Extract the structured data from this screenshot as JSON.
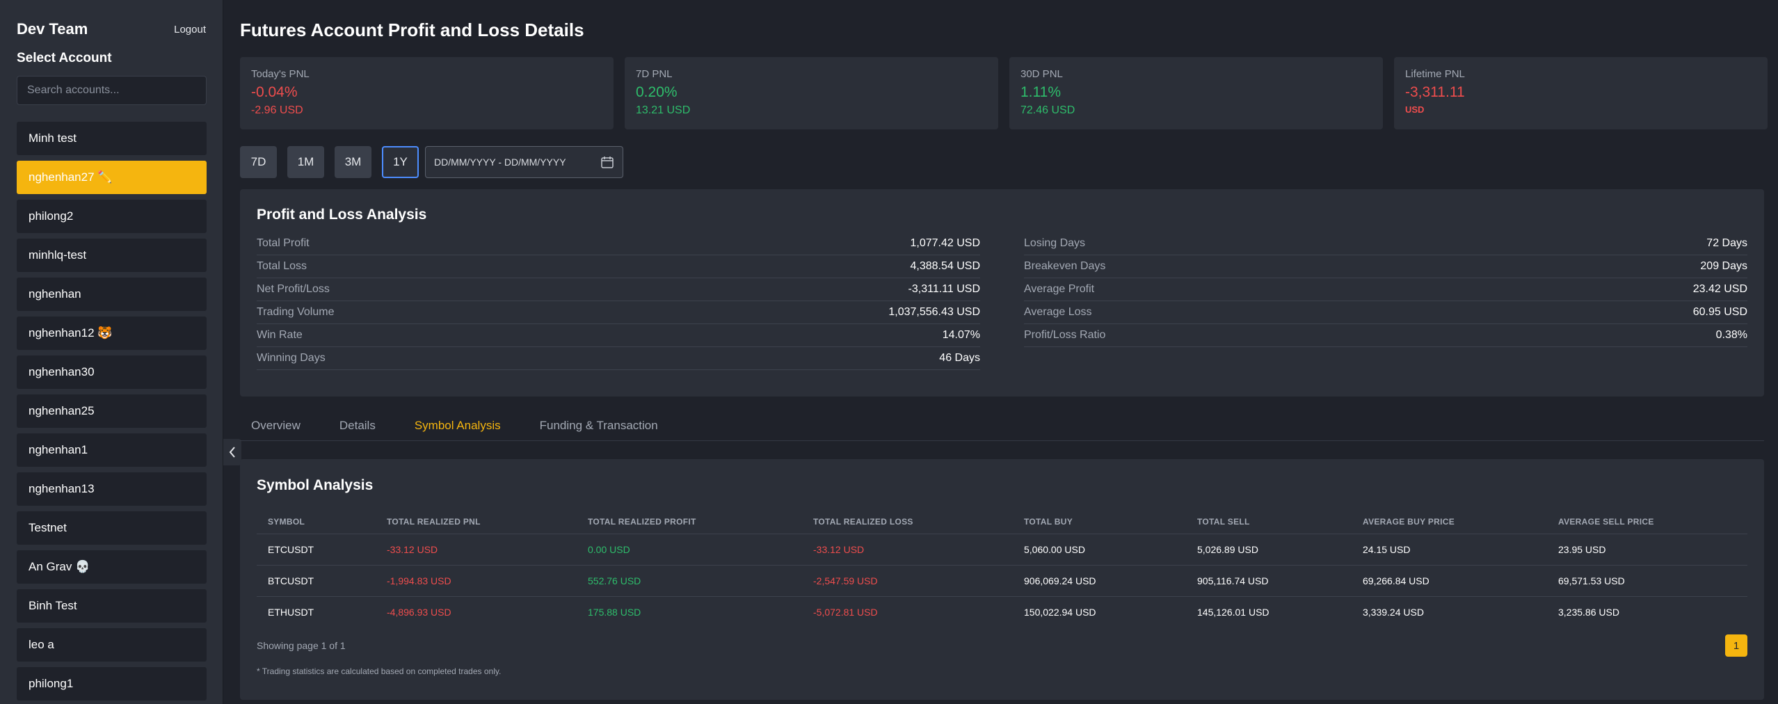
{
  "sidebar": {
    "team": "Dev Team",
    "logout": "Logout",
    "select_account": "Select Account",
    "search_placeholder": "Search accounts...",
    "accounts": [
      {
        "label": "Minh test"
      },
      {
        "label": "nghenhan27 ✏️",
        "active": true
      },
      {
        "label": "philong2"
      },
      {
        "label": "minhlq-test"
      },
      {
        "label": "nghenhan"
      },
      {
        "label": "nghenhan12 🐯"
      },
      {
        "label": "nghenhan30"
      },
      {
        "label": "nghenhan25"
      },
      {
        "label": "nghenhan1"
      },
      {
        "label": "nghenhan13"
      },
      {
        "label": "Testnet"
      },
      {
        "label": "An Grav 💀"
      },
      {
        "label": "Binh Test"
      },
      {
        "label": "leo a"
      },
      {
        "label": "philong1"
      }
    ]
  },
  "page_title": "Futures Account Profit and Loss Details",
  "cards": {
    "today": {
      "label": "Today's PNL",
      "pct": "-0.04%",
      "usd": "-2.96 USD"
    },
    "d7": {
      "label": "7D PNL",
      "pct": "0.20%",
      "usd": "13.21 USD"
    },
    "d30": {
      "label": "30D PNL",
      "pct": "1.11%",
      "usd": "72.46 USD"
    },
    "lifetime": {
      "label": "Lifetime PNL",
      "pct": "-3,311.11",
      "usd": "USD"
    }
  },
  "ranges": {
    "r7d": "7D",
    "r1m": "1M",
    "r3m": "3M",
    "r1y": "1Y",
    "active": "1Y"
  },
  "date_range_placeholder": "DD/MM/YYYY - DD/MM/YYYY",
  "pnl_analysis": {
    "title": "Profit and Loss Analysis",
    "left": [
      {
        "label": "Total Profit",
        "value": "1,077.42 USD"
      },
      {
        "label": "Total Loss",
        "value": "4,388.54 USD"
      },
      {
        "label": "Net Profit/Loss",
        "value": "-3,311.11 USD"
      },
      {
        "label": "Trading Volume",
        "value": "1,037,556.43 USD"
      },
      {
        "label": "Win Rate",
        "value": "14.07%"
      },
      {
        "label": "Winning Days",
        "value": "46 Days"
      }
    ],
    "right": [
      {
        "label": "Losing Days",
        "value": "72 Days"
      },
      {
        "label": "Breakeven Days",
        "value": "209 Days"
      },
      {
        "label": "Average Profit",
        "value": "23.42 USD"
      },
      {
        "label": "Average Loss",
        "value": "60.95 USD"
      },
      {
        "label": "Profit/Loss Ratio",
        "value": "0.38%"
      }
    ]
  },
  "tabs": {
    "overview": "Overview",
    "details": "Details",
    "symbol": "Symbol Analysis",
    "funding": "Funding & Transaction"
  },
  "symbol_analysis": {
    "title": "Symbol Analysis",
    "headers": {
      "symbol": "SYMBOL",
      "pnl": "TOTAL REALIZED PNL",
      "profit": "TOTAL REALIZED PROFIT",
      "loss": "TOTAL REALIZED LOSS",
      "buy": "TOTAL BUY",
      "sell": "TOTAL SELL",
      "avg_buy": "AVERAGE BUY PRICE",
      "avg_sell": "AVERAGE SELL PRICE"
    },
    "rows": [
      {
        "symbol": "ETCUSDT",
        "pnl": "-33.12 USD",
        "profit": "0.00 USD",
        "loss": "-33.12 USD",
        "buy": "5,060.00 USD",
        "sell": "5,026.89 USD",
        "avg_buy": "24.15 USD",
        "avg_sell": "23.95 USD"
      },
      {
        "symbol": "BTCUSDT",
        "pnl": "-1,994.83 USD",
        "profit": "552.76 USD",
        "loss": "-2,547.59 USD",
        "buy": "906,069.24 USD",
        "sell": "905,116.74 USD",
        "avg_buy": "69,266.84 USD",
        "avg_sell": "69,571.53 USD"
      },
      {
        "symbol": "ETHUSDT",
        "pnl": "-4,896.93 USD",
        "profit": "175.88 USD",
        "loss": "-5,072.81 USD",
        "buy": "150,022.94 USD",
        "sell": "145,126.01 USD",
        "avg_buy": "3,339.24 USD",
        "avg_sell": "3,235.86 USD"
      }
    ],
    "showing": "Showing page 1 of 1",
    "page": "1",
    "note": "* Trading statistics are calculated based on completed trades only."
  },
  "icons": {
    "calendar": "calendar-icon",
    "collapse": "chevron-left-icon"
  },
  "colors": {
    "accent": "#f5b50f",
    "negative": "#ef4d4d",
    "positive": "#2ebd6b",
    "focus": "#4d8dff"
  }
}
